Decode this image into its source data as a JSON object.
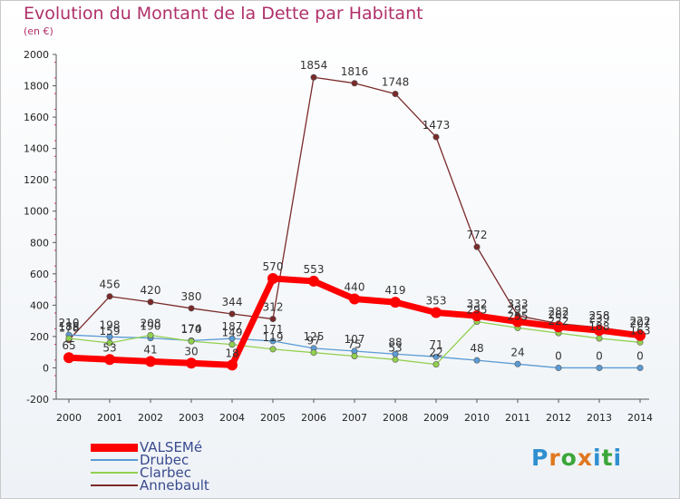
{
  "header": {
    "title": "Evolution du Montant de la Dette par Habitant",
    "subtitle": "(en €)"
  },
  "logo": {
    "text": "Proxiti",
    "colors": [
      "#2f8fd0",
      "#e07820",
      "#3aa63a",
      "#e07820",
      "#2f8fd0",
      "#3aa63a",
      "#2f8fd0"
    ]
  },
  "chart_data": {
    "type": "line",
    "title": "Evolution du Montant de la Dette par Habitant",
    "subtitle": "(en €)",
    "x": [
      "2000",
      "2001",
      "2002",
      "2003",
      "2004",
      "2005",
      "2006",
      "2007",
      "2008",
      "2009",
      "2010",
      "2011",
      "2012",
      "2013",
      "2014"
    ],
    "ylim": [
      -200,
      2000
    ],
    "yticks": [
      -200,
      0,
      200,
      400,
      600,
      800,
      1000,
      1200,
      1400,
      1600,
      1800,
      2000
    ],
    "grid": false,
    "legend_position": "bottom-left",
    "series": [
      {
        "name": "VALSEMé",
        "color": "#ff0000",
        "values": [
          65,
          53,
          41,
          30,
          18,
          570,
          553,
          440,
          419,
          353,
          332,
          295,
          262,
          239,
          207
        ]
      },
      {
        "name": "Drubec",
        "color": "#5b9bd5",
        "values": [
          210,
          198,
          190,
          174,
          187,
          171,
          125,
          107,
          88,
          71,
          48,
          24,
          0,
          0,
          0
        ]
      },
      {
        "name": "Clarbec",
        "color": "#92d050",
        "values": [
          188,
          159,
          208,
          170,
          149,
          119,
          97,
          75,
          53,
          22,
          295,
          255,
          222,
          188,
          163
        ]
      },
      {
        "name": "Annebault",
        "color": "#7b2a2a",
        "values": [
          178,
          456,
          420,
          380,
          344,
          312,
          1854,
          1816,
          1748,
          1473,
          772,
          333,
          282,
          258,
          222
        ]
      }
    ]
  }
}
